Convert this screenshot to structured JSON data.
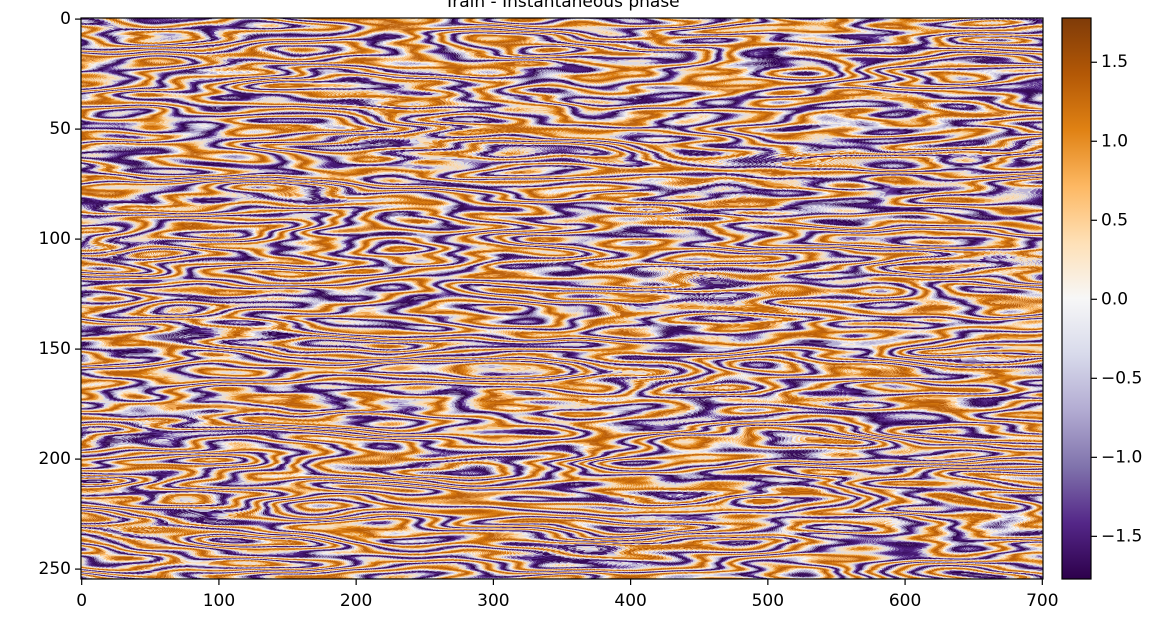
{
  "chart_data": {
    "type": "image",
    "title": "Train - Instantaneous phase",
    "xlim": [
      -0.5,
      700.5
    ],
    "ylim": [
      254.5,
      -0.5
    ],
    "xticks": [
      0,
      100,
      200,
      300,
      400,
      500,
      600,
      700
    ],
    "yticks": [
      0,
      50,
      100,
      150,
      200,
      250
    ],
    "colormap": [
      "#2d004b",
      "#542788",
      "#8073ac",
      "#b2abd2",
      "#d8daeb",
      "#f7f7f7",
      "#fee0b6",
      "#fdb863",
      "#e08214",
      "#b35806",
      "#7f3b08"
    ],
    "colorbar": {
      "clim": [
        -1.77,
        1.78
      ],
      "ticks": [
        {
          "value": -1.5,
          "label": "−1.5"
        },
        {
          "value": -1.0,
          "label": "−1.0"
        },
        {
          "value": -0.5,
          "label": "−0.5"
        },
        {
          "value": 0,
          "label": "0.0"
        },
        0.5,
        {
          "value": 1.0,
          "label": "1.0"
        },
        1.5
      ]
    }
  }
}
